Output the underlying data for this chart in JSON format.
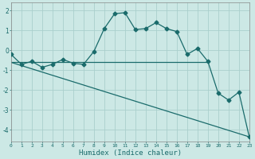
{
  "xlabel": "Humidex (Indice chaleur)",
  "background_color": "#cce8e5",
  "grid_color": "#aacfcc",
  "line_color": "#1a6b6b",
  "xlim": [
    0,
    23
  ],
  "ylim": [
    -4.6,
    2.4
  ],
  "yticks": [
    -4,
    -3,
    -2,
    -1,
    0,
    1,
    2
  ],
  "xticks": [
    0,
    1,
    2,
    3,
    4,
    5,
    6,
    7,
    8,
    9,
    10,
    11,
    12,
    13,
    14,
    15,
    16,
    17,
    18,
    19,
    20,
    21,
    22,
    23
  ],
  "series1_x": [
    0,
    1,
    2,
    3,
    4,
    5,
    6,
    7,
    8,
    9,
    10,
    11,
    12,
    13,
    14,
    15,
    16,
    17,
    18,
    19,
    20,
    21,
    22,
    23
  ],
  "series1_y": [
    -0.2,
    -0.7,
    -0.55,
    -0.85,
    -0.7,
    -0.45,
    -0.65,
    -0.7,
    -0.05,
    1.1,
    1.85,
    1.9,
    1.05,
    1.1,
    1.4,
    1.1,
    0.95,
    -0.2,
    0.1,
    -0.55,
    -2.15,
    -2.5,
    -2.1,
    -4.35
  ],
  "series2_x": [
    0,
    19
  ],
  "series2_y": [
    -0.6,
    -0.6
  ],
  "series3_x": [
    0,
    23
  ],
  "series3_y": [
    -0.6,
    -4.35
  ],
  "markersize": 2.5,
  "linewidth": 0.9
}
